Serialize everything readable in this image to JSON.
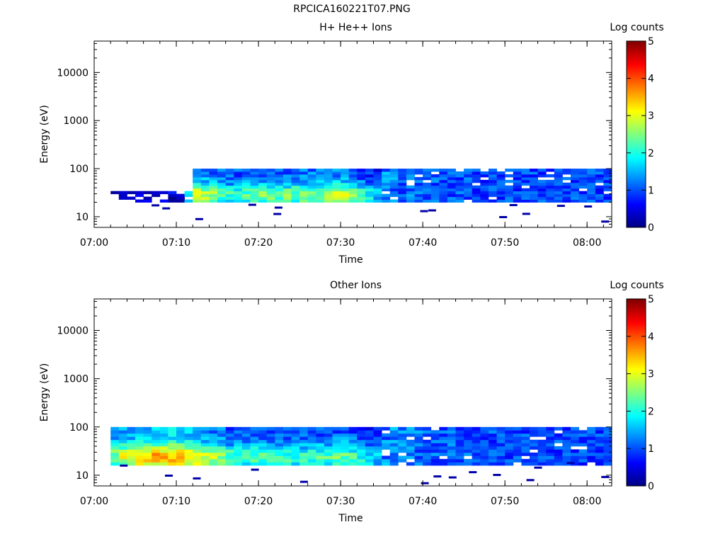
{
  "page_title": "RPCICA160221T07.PNG",
  "chart_data": [
    {
      "type": "heatmap",
      "title": "H+ He++ Ions",
      "xlabel": "Time",
      "ylabel": "Energy (eV)",
      "x_ticks": [
        "07:00",
        "07:10",
        "07:20",
        "07:30",
        "07:40",
        "07:50",
        "08:00"
      ],
      "x_range": [
        "07:00",
        "08:03"
      ],
      "y_ticks": [
        "10",
        "100",
        "1000",
        "10000"
      ],
      "y_range": [
        6,
        45000
      ],
      "y_scale": "log",
      "colorbar": {
        "label": "Log counts",
        "ticks": [
          "0",
          "1",
          "2",
          "3",
          "4",
          "5"
        ],
        "range": [
          0,
          5
        ],
        "colormap": "jet"
      },
      "grid": false,
      "data_extent": {
        "time_start": "07:02",
        "time_end": "08:03",
        "energy_min_eV": 20,
        "energy_max_eV": 100
      },
      "profile": [
        {
          "time": "07:02",
          "peak_log_counts": 0.1
        },
        {
          "time": "07:05",
          "peak_log_counts": 0.3
        },
        {
          "time": "07:10",
          "peak_log_counts": 0.5
        },
        {
          "time": "07:12",
          "peak_log_counts": 3.0
        },
        {
          "time": "07:16",
          "peak_log_counts": 2.2
        },
        {
          "time": "07:20",
          "peak_log_counts": 2.4
        },
        {
          "time": "07:25",
          "peak_log_counts": 2.5
        },
        {
          "time": "07:30",
          "peak_log_counts": 2.8
        },
        {
          "time": "07:34",
          "peak_log_counts": 1.6
        },
        {
          "time": "07:40",
          "peak_log_counts": 1.3
        },
        {
          "time": "07:50",
          "peak_log_counts": 1.2
        },
        {
          "time": "08:03",
          "peak_log_counts": 1.2
        }
      ]
    },
    {
      "type": "heatmap",
      "title": "Other Ions",
      "xlabel": "Time",
      "ylabel": "Energy (eV)",
      "x_ticks": [
        "07:00",
        "07:10",
        "07:20",
        "07:30",
        "07:40",
        "07:50",
        "08:00"
      ],
      "x_range": [
        "07:00",
        "08:03"
      ],
      "y_ticks": [
        "10",
        "100",
        "1000",
        "10000"
      ],
      "y_range": [
        6,
        45000
      ],
      "y_scale": "log",
      "colorbar": {
        "label": "Log counts",
        "ticks": [
          "0",
          "1",
          "2",
          "3",
          "4",
          "5"
        ],
        "range": [
          0,
          5
        ],
        "colormap": "jet"
      },
      "grid": false,
      "data_extent": {
        "time_start": "07:02",
        "time_end": "08:03",
        "energy_min_eV": 16,
        "energy_max_eV": 100
      },
      "profile": [
        {
          "time": "07:02",
          "peak_log_counts": 2.6
        },
        {
          "time": "07:05",
          "peak_log_counts": 3.5
        },
        {
          "time": "07:09",
          "peak_log_counts": 3.6
        },
        {
          "time": "07:12",
          "peak_log_counts": 3.2
        },
        {
          "time": "07:16",
          "peak_log_counts": 2.3
        },
        {
          "time": "07:20",
          "peak_log_counts": 2.2
        },
        {
          "time": "07:25",
          "peak_log_counts": 2.1
        },
        {
          "time": "07:30",
          "peak_log_counts": 2.4
        },
        {
          "time": "07:34",
          "peak_log_counts": 1.6
        },
        {
          "time": "07:40",
          "peak_log_counts": 1.4
        },
        {
          "time": "07:50",
          "peak_log_counts": 1.2
        },
        {
          "time": "08:03",
          "peak_log_counts": 1.2
        }
      ]
    }
  ]
}
